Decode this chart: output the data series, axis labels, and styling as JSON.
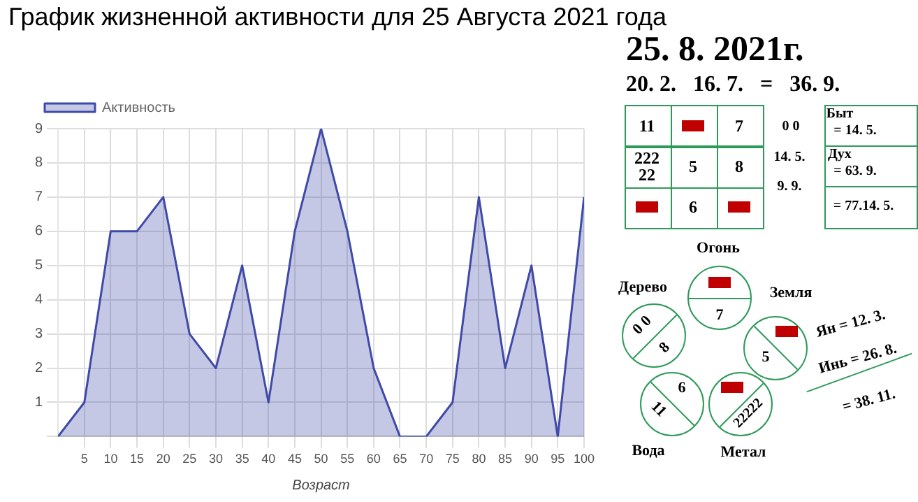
{
  "chart_data": [
    {
      "type": "area",
      "title": "График жизненной активности для 25 Августа 2021 года",
      "xlabel": "Возраст",
      "x": [
        0,
        5,
        10,
        15,
        20,
        25,
        30,
        35,
        40,
        45,
        50,
        55,
        60,
        65,
        70,
        75,
        80,
        85,
        90,
        95,
        100
      ],
      "series": [
        {
          "name": "Активность",
          "color": "#3f4aa8",
          "values": [
            0,
            1,
            6,
            6,
            7,
            3,
            2,
            5,
            1,
            6,
            9,
            6,
            2,
            0,
            0,
            1,
            7,
            2,
            5,
            0,
            7
          ]
        }
      ],
      "xlim": [
        0,
        100
      ],
      "xticks": [
        5,
        10,
        15,
        20,
        25,
        30,
        35,
        40,
        45,
        50,
        55,
        60,
        65,
        70,
        75,
        80,
        85,
        90,
        95,
        100
      ],
      "ylim": [
        0,
        9
      ],
      "yticks": [
        {
          "value": 0,
          "label": null
        },
        1,
        2,
        3,
        4,
        5,
        6,
        7,
        8,
        9
      ],
      "grid": true,
      "legend": "top left"
    },
    {
      "type": "other",
      "title": "25. 8. 2021г.",
      "subtitle": "20. 2.   16. 7.   =   36. 9.",
      "annotations": [
        "11",
        "7",
        "222 22",
        "5",
        "8",
        "6",
        "0 0",
        "14. 5.",
        "9. 9.",
        "Быт",
        "= 14. 5.",
        "Дух",
        "= 63. 9.",
        "= 77.14. 5.",
        "Огонь",
        "Дерево",
        "Земля",
        "Вода",
        "Метал",
        "7",
        "0 0",
        "8",
        "5",
        "6",
        "11",
        "22222",
        "Ян = 12. 3.",
        "Инь = 26. 8.",
        "= 38. 11."
      ]
    }
  ]
}
